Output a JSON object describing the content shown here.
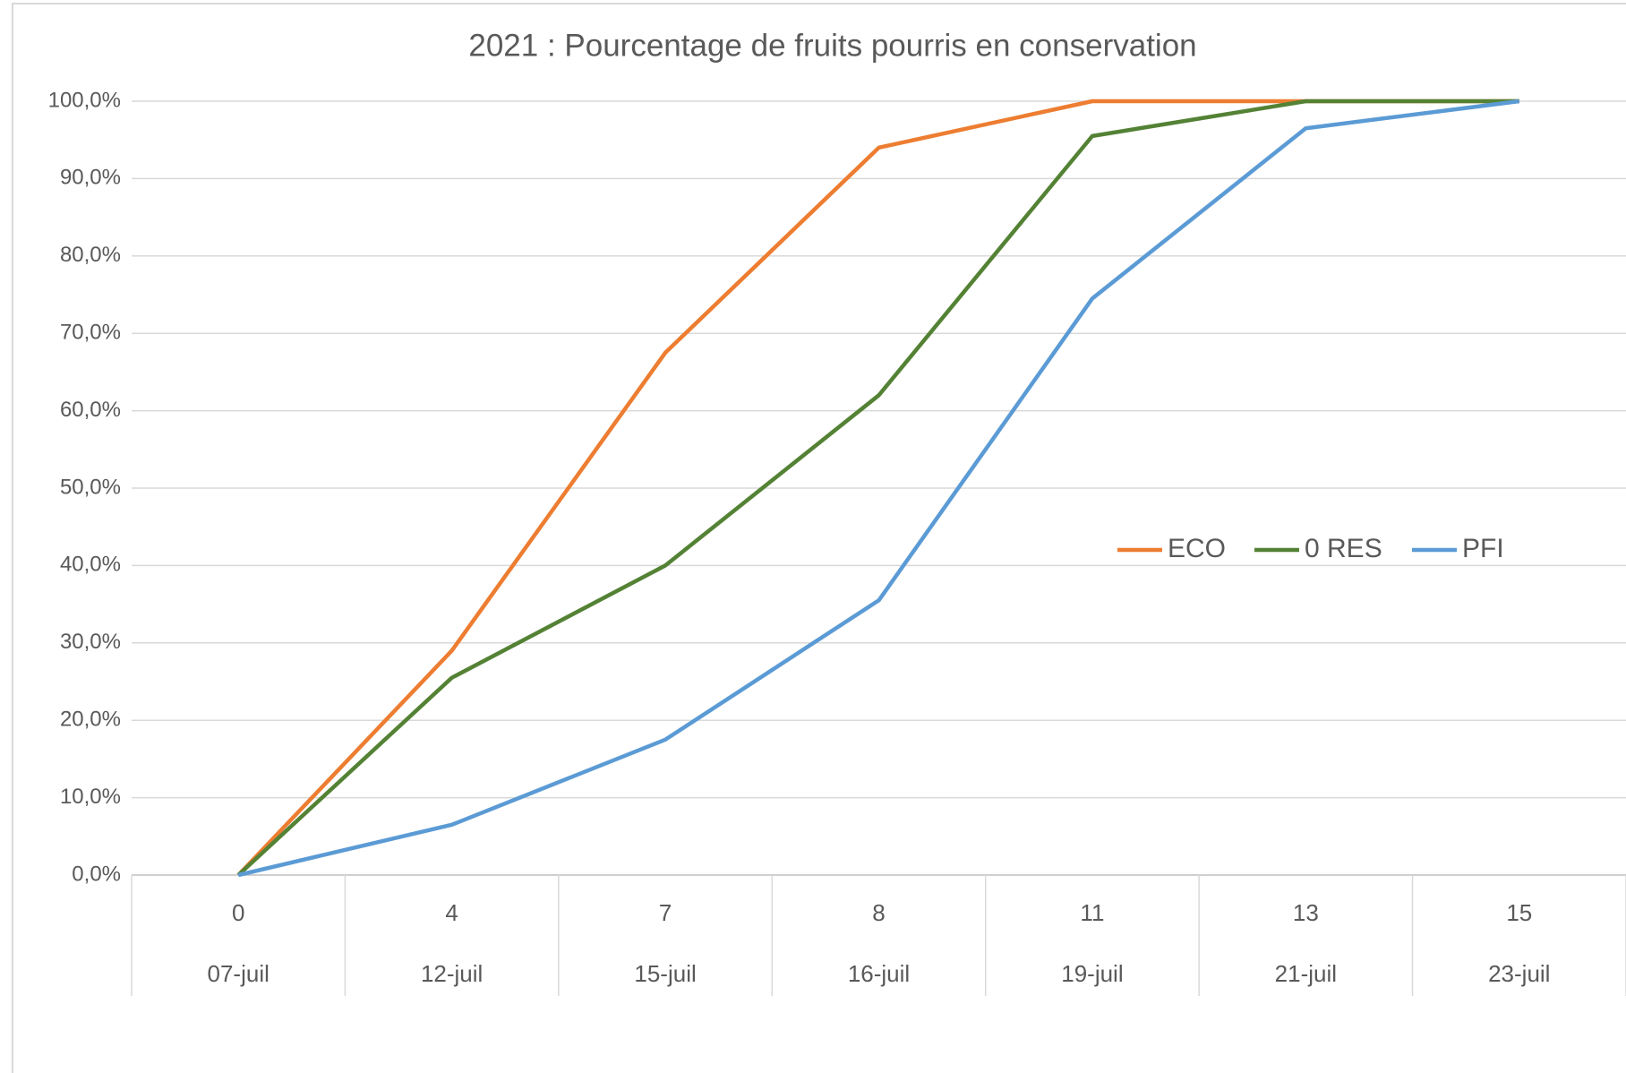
{
  "chart_data": {
    "type": "line",
    "title": "2021 : Pourcentage de fruits pourris en conservation",
    "categories": [
      "0",
      "4",
      "7",
      "8",
      "11",
      "13",
      "15"
    ],
    "category_dates": [
      "07-juil",
      "12-juil",
      "15-juil",
      "16-juil",
      "19-juil",
      "21-juil",
      "23-juil"
    ],
    "series": [
      {
        "name": "ECO",
        "color": "#ed7d31",
        "values": [
          0,
          29,
          67.5,
          94,
          100,
          100,
          100
        ]
      },
      {
        "name": "0 RES",
        "color": "#548235",
        "values": [
          0,
          25.5,
          40,
          62,
          95.5,
          100,
          100
        ]
      },
      {
        "name": "PFI",
        "color": "#5b9bd5",
        "values": [
          0,
          6.5,
          17.5,
          35.5,
          74.5,
          96.5,
          100
        ]
      }
    ],
    "ylim": [
      0,
      100
    ],
    "yticks": [
      {
        "value": 0,
        "label": "0,0%"
      },
      {
        "value": 10,
        "label": "10,0%"
      },
      {
        "value": 20,
        "label": "20,0%"
      },
      {
        "value": 30,
        "label": "30,0%"
      },
      {
        "value": 40,
        "label": "40,0%"
      },
      {
        "value": 50,
        "label": "50,0%"
      },
      {
        "value": 60,
        "label": "60,0%"
      },
      {
        "value": 70,
        "label": "70,0%"
      },
      {
        "value": 80,
        "label": "80,0%"
      },
      {
        "value": 90,
        "label": "90,0%"
      },
      {
        "value": 100,
        "label": "100,0%"
      }
    ],
    "grid": true,
    "legend_position": "right"
  }
}
